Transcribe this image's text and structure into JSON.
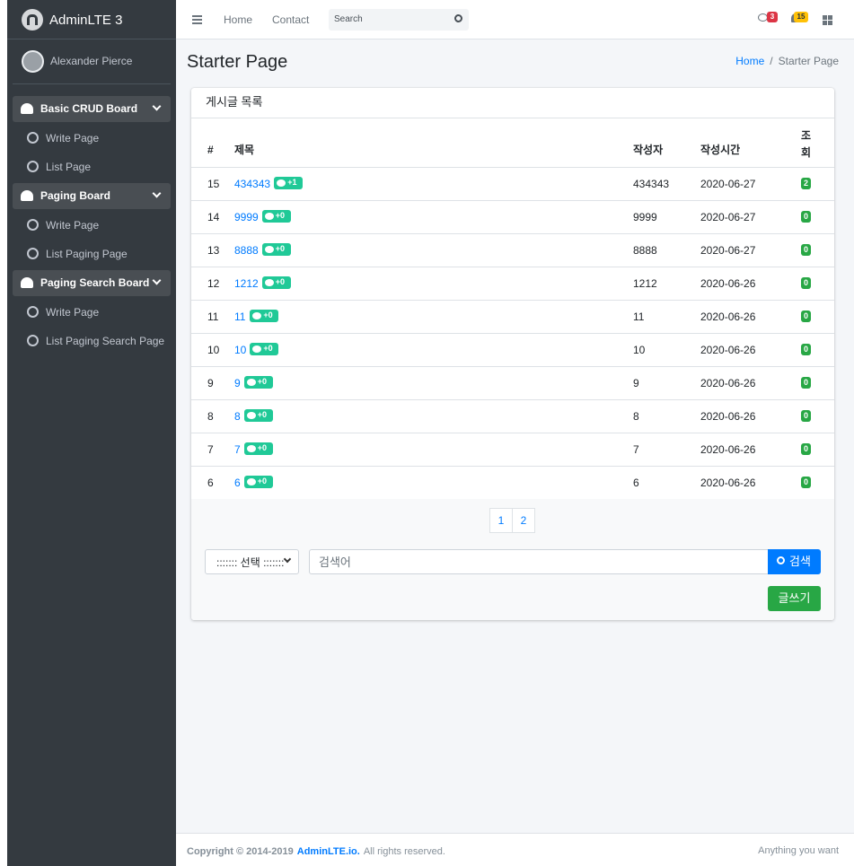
{
  "brand": "AdminLTE 3",
  "user": "Alexander Pierce",
  "sidebar": [
    {
      "label": "Basic CRUD Board",
      "items": [
        "Write Page",
        "List Page"
      ]
    },
    {
      "label": "Paging Board",
      "items": [
        "Write Page",
        "List Paging Page"
      ]
    },
    {
      "label": "Paging Search Board",
      "items": [
        "Write Page",
        "List Paging Search Page"
      ]
    }
  ],
  "navbar": {
    "links": [
      "Home",
      "Contact"
    ],
    "search_placeholder": "Search",
    "messages_badge": "3",
    "notifications_badge": "15"
  },
  "page_title": "Starter Page",
  "breadcrumb": [
    "Home",
    "Starter Page"
  ],
  "card_title": "게시글 목록",
  "table": {
    "headers": [
      "#",
      "제목",
      "작성자",
      "작성시간",
      "조회"
    ],
    "rows": [
      {
        "no": "15",
        "title": "434343",
        "comments": "+1",
        "writer": "434343",
        "date": "2020-06-27",
        "views": "2"
      },
      {
        "no": "14",
        "title": "9999",
        "comments": "+0",
        "writer": "9999",
        "date": "2020-06-27",
        "views": "0"
      },
      {
        "no": "13",
        "title": "8888",
        "comments": "+0",
        "writer": "8888",
        "date": "2020-06-27",
        "views": "0"
      },
      {
        "no": "12",
        "title": "1212",
        "comments": "+0",
        "writer": "1212",
        "date": "2020-06-26",
        "views": "0"
      },
      {
        "no": "11",
        "title": "11",
        "comments": "+0",
        "writer": "11",
        "date": "2020-06-26",
        "views": "0"
      },
      {
        "no": "10",
        "title": "10",
        "comments": "+0",
        "writer": "10",
        "date": "2020-06-26",
        "views": "0"
      },
      {
        "no": "9",
        "title": "9",
        "comments": "+0",
        "writer": "9",
        "date": "2020-06-26",
        "views": "0"
      },
      {
        "no": "8",
        "title": "8",
        "comments": "+0",
        "writer": "8",
        "date": "2020-06-26",
        "views": "0"
      },
      {
        "no": "7",
        "title": "7",
        "comments": "+0",
        "writer": "7",
        "date": "2020-06-26",
        "views": "0"
      },
      {
        "no": "6",
        "title": "6",
        "comments": "+0",
        "writer": "6",
        "date": "2020-06-26",
        "views": "0"
      }
    ]
  },
  "pagination": [
    "1",
    "2"
  ],
  "search": {
    "select": "::::::: 선택 :::::::",
    "placeholder": "검색어",
    "button": "검색"
  },
  "write_button": "글쓰기",
  "footer": {
    "copyright": "Copyright © 2014-2019",
    "link": "AdminLTE.io.",
    "rights": "All rights reserved.",
    "right": "Anything you want"
  }
}
